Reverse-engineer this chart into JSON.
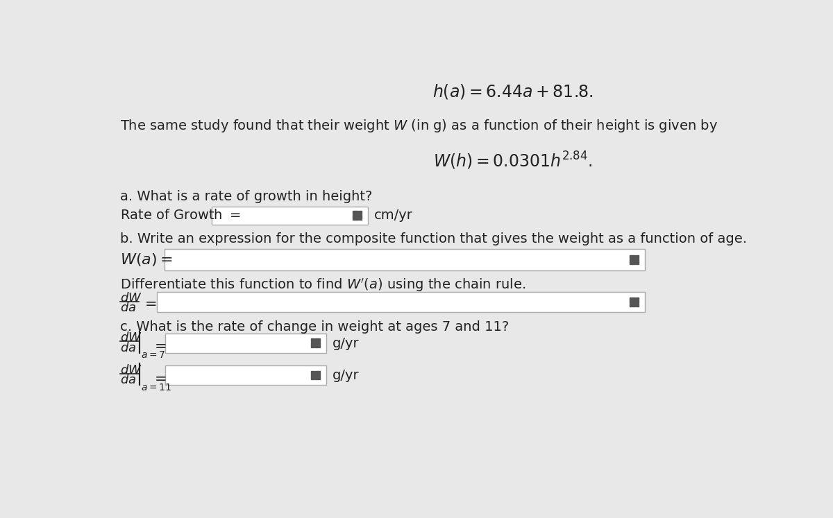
{
  "bg_color": "#e8e8e8",
  "text_color": "#222222",
  "line1_math": "$h(a) = 6.44a + 81.8.$",
  "line2_text": "The same study found that their weight $W$ (in g) as a function of their height is given by",
  "line3_math": "$W(h) = 0.0301h^{2.84}.$",
  "seca_title": "a. What is a rate of growth in height?",
  "seca_label": "Rate of Growth $=$",
  "seca_unit": "cm/yr",
  "secb_title": "b. Write an expression for the composite function that gives the weight as a function of age.",
  "secb_label": "$W(a) =$",
  "secc_diff_title": "Differentiate this function to find $W'(a)$ using the chain rule.",
  "secc_title": "c. What is the rate of change in weight at ages 7 and 11?",
  "box_color": "#ffffff",
  "box_edge_color": "#aaaaaa",
  "grid_icon_color": "#555555"
}
